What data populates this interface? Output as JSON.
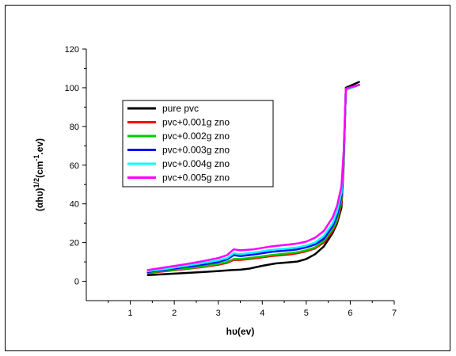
{
  "chart_data": {
    "type": "line",
    "xlabel": "hυ(ev)",
    "ylabel": {
      "main": "(αhυ)",
      "sup1": "1/2",
      "mid": "(cm",
      "sup2": "-1",
      "end": ".ev)"
    },
    "xlim": [
      0,
      7
    ],
    "ylim": [
      -10,
      120
    ],
    "x_ticks": [
      1,
      2,
      3,
      4,
      5,
      6,
      7
    ],
    "y_ticks": [
      0,
      20,
      40,
      60,
      80,
      100,
      120
    ],
    "grid": false,
    "legend_position": "upper-left",
    "series": [
      {
        "name": "pure pvc",
        "color": "#000000",
        "x": [
          1.4,
          1.8,
          2.2,
          2.6,
          3.0,
          3.3,
          3.5,
          3.7,
          4.0,
          4.3,
          4.6,
          4.8,
          5.0,
          5.2,
          5.4,
          5.6,
          5.7,
          5.8,
          5.85,
          5.9,
          6.2
        ],
        "y": [
          3.2,
          3.7,
          4.2,
          4.7,
          5.3,
          5.8,
          6.0,
          6.5,
          8.0,
          9.2,
          9.8,
          10.2,
          11.5,
          14.0,
          18.0,
          25.0,
          30.0,
          38.0,
          60.0,
          100.0,
          103.0
        ]
      },
      {
        "name": "pvc+0.001g zno",
        "color": "#ff0000",
        "x": [
          1.4,
          1.8,
          2.2,
          2.6,
          3.0,
          3.2,
          3.35,
          3.5,
          3.8,
          4.2,
          4.6,
          4.8,
          5.0,
          5.2,
          5.4,
          5.6,
          5.7,
          5.8,
          5.85,
          5.9,
          6.2
        ],
        "y": [
          4.2,
          5.2,
          6.2,
          7.2,
          8.5,
          9.5,
          11.0,
          11.0,
          11.8,
          13.0,
          13.8,
          14.5,
          15.5,
          17.0,
          20.0,
          26.0,
          31.0,
          40.0,
          62.0,
          99.0,
          101.5
        ]
      },
      {
        "name": "pvc+0.002g zno",
        "color": "#00cc00",
        "x": [
          1.4,
          1.8,
          2.2,
          2.6,
          3.0,
          3.2,
          3.35,
          3.5,
          3.8,
          4.2,
          4.6,
          4.8,
          5.0,
          5.2,
          5.4,
          5.6,
          5.7,
          5.8,
          5.85,
          5.9,
          6.2
        ],
        "y": [
          4.5,
          5.5,
          6.5,
          7.5,
          9.0,
          10.0,
          11.5,
          11.5,
          12.3,
          13.5,
          14.5,
          15.0,
          16.0,
          17.5,
          21.0,
          27.0,
          32.0,
          42.0,
          63.0,
          99.0,
          101.5
        ]
      },
      {
        "name": "pvc+0.003g zno",
        "color": "#0000ff",
        "x": [
          1.4,
          1.8,
          2.2,
          2.6,
          3.0,
          3.2,
          3.35,
          3.5,
          3.8,
          4.2,
          4.6,
          4.8,
          5.0,
          5.2,
          5.4,
          5.6,
          5.7,
          5.8,
          5.85,
          5.9,
          6.2
        ],
        "y": [
          4.8,
          6.0,
          7.2,
          8.4,
          10.0,
          11.3,
          13.5,
          13.0,
          13.8,
          15.2,
          16.0,
          16.5,
          17.5,
          19.0,
          22.0,
          28.5,
          34.0,
          44.0,
          64.0,
          99.0,
          101.5
        ]
      },
      {
        "name": "pvc+0.004g zno",
        "color": "#00ffff",
        "x": [
          1.4,
          1.8,
          2.2,
          2.6,
          3.0,
          3.2,
          3.35,
          3.5,
          3.8,
          4.2,
          4.6,
          4.8,
          5.0,
          5.2,
          5.4,
          5.6,
          5.7,
          5.8,
          5.85,
          5.9,
          6.2
        ],
        "y": [
          5.2,
          6.4,
          7.8,
          9.2,
          10.8,
          12.0,
          14.5,
          14.0,
          14.8,
          16.2,
          17.0,
          17.5,
          18.5,
          20.0,
          23.5,
          30.0,
          36.0,
          46.0,
          65.0,
          99.0,
          101.5
        ]
      },
      {
        "name": "pvc+0.005g zno",
        "color": "#ff00ff",
        "x": [
          1.4,
          1.8,
          2.2,
          2.6,
          3.0,
          3.2,
          3.35,
          3.5,
          3.8,
          4.2,
          4.6,
          4.8,
          5.0,
          5.2,
          5.4,
          5.6,
          5.7,
          5.8,
          5.85,
          5.9,
          6.2
        ],
        "y": [
          5.8,
          7.2,
          8.6,
          10.2,
          12.0,
          13.5,
          16.5,
          16.0,
          16.5,
          18.0,
          19.0,
          19.5,
          20.5,
          22.5,
          26.0,
          33.0,
          39.0,
          49.0,
          67.0,
          99.5,
          101.5
        ]
      }
    ]
  }
}
